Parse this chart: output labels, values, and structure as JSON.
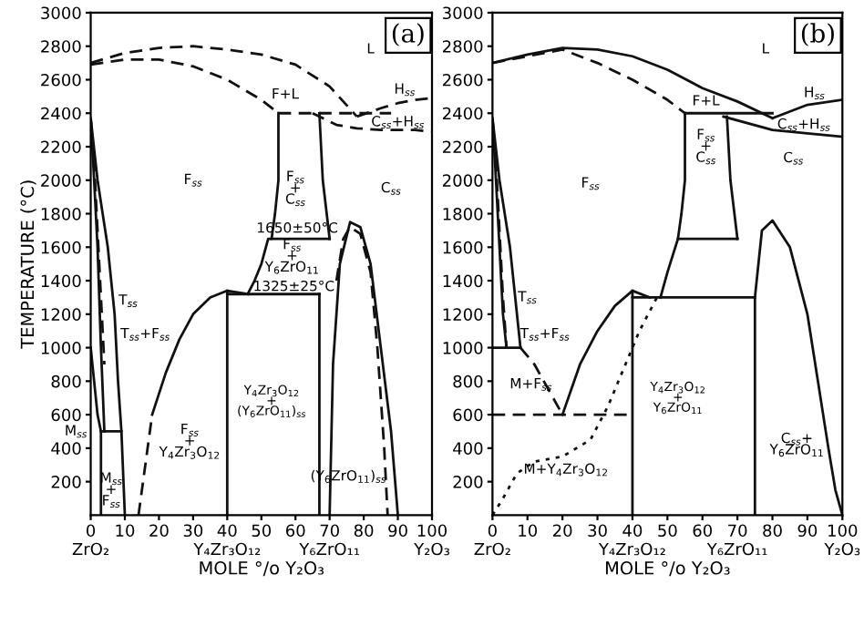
{
  "chart_data": [
    {
      "type": "line",
      "xlim": [
        0,
        100
      ],
      "ylim": [
        0,
        3000
      ],
      "xticks": [
        {
          "value": 0,
          "label": "0\nZrO₂"
        },
        10,
        20,
        30,
        {
          "value": 40,
          "label": "40\nY₄Zr₃O₁₂"
        },
        50,
        60,
        {
          "value": 70,
          "label": "70\nY₆ZrO₁₁"
        },
        80,
        90,
        {
          "value": 100,
          "label": "100\nY₂O₃"
        }
      ],
      "yticks": [
        200,
        400,
        600,
        800,
        1000,
        1200,
        1400,
        1600,
        1800,
        2000,
        2200,
        2400,
        2600,
        2800,
        3000
      ],
      "xlabel": "MOLE °/o Y₂O₃",
      "ylabel": "TEMPERATURE (°C)",
      "series": [
        {
          "color": "#111111",
          "line_style": "dashed",
          "x": [
            0,
            10,
            20,
            30,
            40,
            50,
            60,
            70,
            78
          ],
          "values": [
            2700,
            2760,
            2790,
            2800,
            2780,
            2750,
            2690,
            2560,
            2380
          ]
        },
        {
          "color": "#111111",
          "line_style": "dashed",
          "x": [
            0,
            10,
            20,
            30,
            40,
            50,
            55
          ],
          "values": [
            2690,
            2720,
            2720,
            2680,
            2600,
            2480,
            2400
          ]
        },
        {
          "color": "#111111",
          "line_style": "dashed",
          "x": [
            55,
            88
          ],
          "values": [
            2400,
            2400
          ]
        },
        {
          "color": "#111111",
          "line_style": "dashed",
          "x": [
            78,
            85,
            90,
            95,
            100
          ],
          "values": [
            2380,
            2430,
            2460,
            2480,
            2490
          ]
        },
        {
          "color": "#111111",
          "line_style": "dashed",
          "x": [
            65,
            72,
            78,
            85,
            95,
            100
          ],
          "values": [
            2400,
            2330,
            2310,
            2300,
            2300,
            2290
          ]
        },
        {
          "color": "#111111",
          "line_style": "solid",
          "x": [
            55,
            55,
            54,
            53,
            52,
            50,
            48,
            46
          ],
          "values": [
            2400,
            2000,
            1800,
            1650,
            1650,
            1500,
            1400,
            1320
          ]
        },
        {
          "color": "#111111",
          "line_style": "solid",
          "x": [
            67,
            68,
            70
          ],
          "values": [
            2400,
            2000,
            1650
          ]
        },
        {
          "color": "#111111",
          "line_style": "solid",
          "x": [
            53,
            70
          ],
          "values": [
            1650,
            1650
          ]
        },
        {
          "color": "#111111",
          "line_style": "solid",
          "x": [
            40,
            67
          ],
          "values": [
            1320,
            1320
          ]
        },
        {
          "color": "#111111",
          "line_style": "solid",
          "x": [
            4,
            3,
            2,
            1,
            0,
            2,
            5,
            7,
            8,
            9,
            10
          ],
          "values": [
            500,
            1000,
            1600,
            2000,
            2370,
            2000,
            1600,
            1200,
            800,
            500,
            0
          ]
        },
        {
          "color": "#111111",
          "line_style": "dashed",
          "x": [
            0,
            1,
            2,
            3,
            4
          ],
          "values": [
            2370,
            2100,
            1700,
            1300,
            900
          ]
        },
        {
          "color": "#111111",
          "line_style": "solid",
          "x": [
            0,
            1,
            2,
            3,
            3
          ],
          "values": [
            1000,
            800,
            600,
            500,
            0
          ]
        },
        {
          "color": "#111111",
          "line_style": "solid",
          "x": [
            3,
            9
          ],
          "values": [
            500,
            500
          ]
        },
        {
          "color": "#111111",
          "line_style": "dashed",
          "x": [
            14,
            18
          ],
          "values": [
            0,
            600
          ]
        },
        {
          "color": "#111111",
          "line_style": "solid",
          "x": [
            18,
            22,
            26,
            30,
            35,
            40,
            43,
            46
          ],
          "values": [
            600,
            850,
            1050,
            1200,
            1300,
            1340,
            1330,
            1320
          ]
        },
        {
          "color": "#111111",
          "line_style": "solid",
          "x": [
            40,
            40
          ],
          "values": [
            0,
            1340
          ]
        },
        {
          "color": "#111111",
          "line_style": "solid",
          "x": [
            67,
            67
          ],
          "values": [
            0,
            1320
          ]
        },
        {
          "color": "#111111",
          "line_style": "solid",
          "x": [
            70,
            71,
            73,
            76,
            79,
            82,
            85,
            88,
            90
          ],
          "values": [
            0,
            900,
            1500,
            1750,
            1720,
            1500,
            1000,
            500,
            0
          ]
        },
        {
          "color": "#111111",
          "line_style": "dashed",
          "x": [
            72,
            74,
            76,
            79,
            82,
            84,
            86,
            87
          ],
          "values": [
            1400,
            1650,
            1720,
            1680,
            1450,
            1000,
            400,
            0
          ]
        }
      ],
      "annotations": [
        "(a)",
        "L",
        "F+L",
        "H$_{ss}$",
        "C$_{ss}$+H$_{ss}$",
        "F$_{ss}$",
        "F$_{ss}$\n+\nC$_{ss}$",
        "C$_{ss}$",
        "1650±50°C",
        "F$_{ss}$\n+\nY$_{6}$ZrO$_{11}$",
        "1325±25°C",
        "T$_{ss}$",
        "T$_{ss}$+F$_{ss}$",
        "M$_{ss}$",
        "M$_{ss}$\n+\nF$_{ss}$",
        "F$_{ss}$\n+\nY$_{4}$Zr$_{3}$O$_{12}$",
        "Y$_{4}$Zr$_{3}$O$_{12}$\n+\n(Y$_{6}$ZrO$_{11}$)$_{ss}$",
        "(Y$_{6}$ZrO$_{11}$)$_{ss}$"
      ]
    },
    {
      "type": "line",
      "xlim": [
        0,
        100
      ],
      "ylim": [
        0,
        3000
      ],
      "xticks": [
        {
          "value": 0,
          "label": "0\nZrO₂"
        },
        10,
        20,
        30,
        {
          "value": 40,
          "label": "40\nY₄Zr₃O₁₂"
        },
        50,
        60,
        {
          "value": 70,
          "label": "70\nY₆ZrO₁₁"
        },
        80,
        90,
        {
          "value": 100,
          "label": "100\nY₂O₃"
        }
      ],
      "yticks": [
        200,
        400,
        600,
        800,
        1000,
        1200,
        1400,
        1600,
        1800,
        2000,
        2200,
        2400,
        2600,
        2800,
        3000
      ],
      "xlabel": "MOLE °/o Y₂O₃",
      "series": [
        {
          "color": "#111111",
          "line_style": "solid",
          "x": [
            0,
            10,
            20,
            30,
            40,
            50,
            60,
            70,
            80
          ],
          "values": [
            2700,
            2750,
            2790,
            2780,
            2740,
            2660,
            2550,
            2470,
            2370
          ]
        },
        {
          "color": "#111111",
          "line_style": "solid",
          "x": [
            80,
            90,
            100
          ],
          "values": [
            2370,
            2450,
            2480
          ]
        },
        {
          "color": "#111111",
          "line_style": "solid",
          "x": [
            66,
            80,
            90,
            100
          ],
          "values": [
            2380,
            2300,
            2280,
            2260
          ]
        },
        {
          "color": "#111111",
          "line_style": "dashed",
          "x": [
            0,
            10,
            20,
            30,
            40,
            50,
            55
          ],
          "values": [
            2700,
            2740,
            2780,
            2700,
            2600,
            2480,
            2400
          ]
        },
        {
          "color": "#111111",
          "line_style": "solid",
          "x": [
            55,
            80
          ],
          "values": [
            2400,
            2400
          ]
        },
        {
          "color": "#111111",
          "line_style": "solid",
          "x": [
            55,
            55,
            54,
            53,
            53,
            50,
            48
          ],
          "values": [
            2400,
            2000,
            1800,
            1650,
            1650,
            1450,
            1300
          ]
        },
        {
          "color": "#111111",
          "line_style": "solid",
          "x": [
            67,
            68,
            70
          ],
          "values": [
            2380,
            2000,
            1650
          ]
        },
        {
          "color": "#111111",
          "line_style": "solid",
          "x": [
            53,
            70
          ],
          "values": [
            1650,
            1650
          ]
        },
        {
          "color": "#111111",
          "line_style": "solid",
          "x": [
            40,
            75
          ],
          "values": [
            1300,
            1300
          ]
        },
        {
          "color": "#111111",
          "line_style": "solid",
          "x": [
            40,
            40
          ],
          "values": [
            0,
            1340
          ]
        },
        {
          "color": "#111111",
          "line_style": "solid",
          "x": [
            75,
            75,
            77,
            80,
            85,
            90,
            93,
            96,
            98,
            100
          ],
          "values": [
            0,
            1300,
            1700,
            1760,
            1600,
            1200,
            800,
            400,
            150,
            0
          ]
        },
        {
          "color": "#111111",
          "line_style": "solid",
          "x": [
            8,
            7,
            5,
            2,
            0,
            1,
            2,
            3,
            4
          ],
          "values": [
            1000,
            1200,
            1600,
            2000,
            2370,
            2000,
            1600,
            1200,
            1000
          ]
        },
        {
          "color": "#111111",
          "line_style": "dashed",
          "x": [
            0,
            1,
            2,
            3,
            4
          ],
          "values": [
            2370,
            2100,
            1700,
            1300,
            1000
          ]
        },
        {
          "color": "#111111",
          "line_style": "solid",
          "x": [
            0,
            8
          ],
          "values": [
            1000,
            1000
          ]
        },
        {
          "color": "#111111",
          "line_style": "dashed",
          "x": [
            8,
            12,
            16,
            20
          ],
          "values": [
            1000,
            900,
            750,
            600
          ]
        },
        {
          "color": "#111111",
          "line_style": "solid",
          "x": [
            20,
            25,
            30,
            35,
            40,
            45
          ],
          "values": [
            600,
            900,
            1100,
            1250,
            1340,
            1300
          ]
        },
        {
          "color": "#111111",
          "line_style": "dashed",
          "x": [
            0,
            40
          ],
          "values": [
            600,
            600
          ]
        },
        {
          "color": "#111111",
          "line_style": "dotted",
          "x": [
            0,
            3,
            7,
            12,
            20,
            28,
            33,
            38,
            42,
            47
          ],
          "values": [
            0,
            100,
            250,
            320,
            350,
            450,
            650,
            900,
            1100,
            1300
          ]
        }
      ],
      "annotations": [
        "(b)",
        "L",
        "F+L",
        "H$_{ss}$",
        "C$_{ss}$+H$_{ss}$",
        "F$_{ss}$",
        "F$_{ss}$\n+\nC$_{ss}$",
        "C$_{ss}$",
        "T$_{ss}$",
        "T$_{ss}$+F$_{ss}$",
        "M+F$_{ss}$",
        "M+Y$_{4}$Zr$_{3}$O$_{12}$",
        "Y$_{4}$Zr$_{3}$O$_{12}$\n+\nY$_{6}$ZrO$_{11}$",
        "C$_{ss}$+\nY$_{6}$ZrO$_{11}$"
      ]
    }
  ]
}
